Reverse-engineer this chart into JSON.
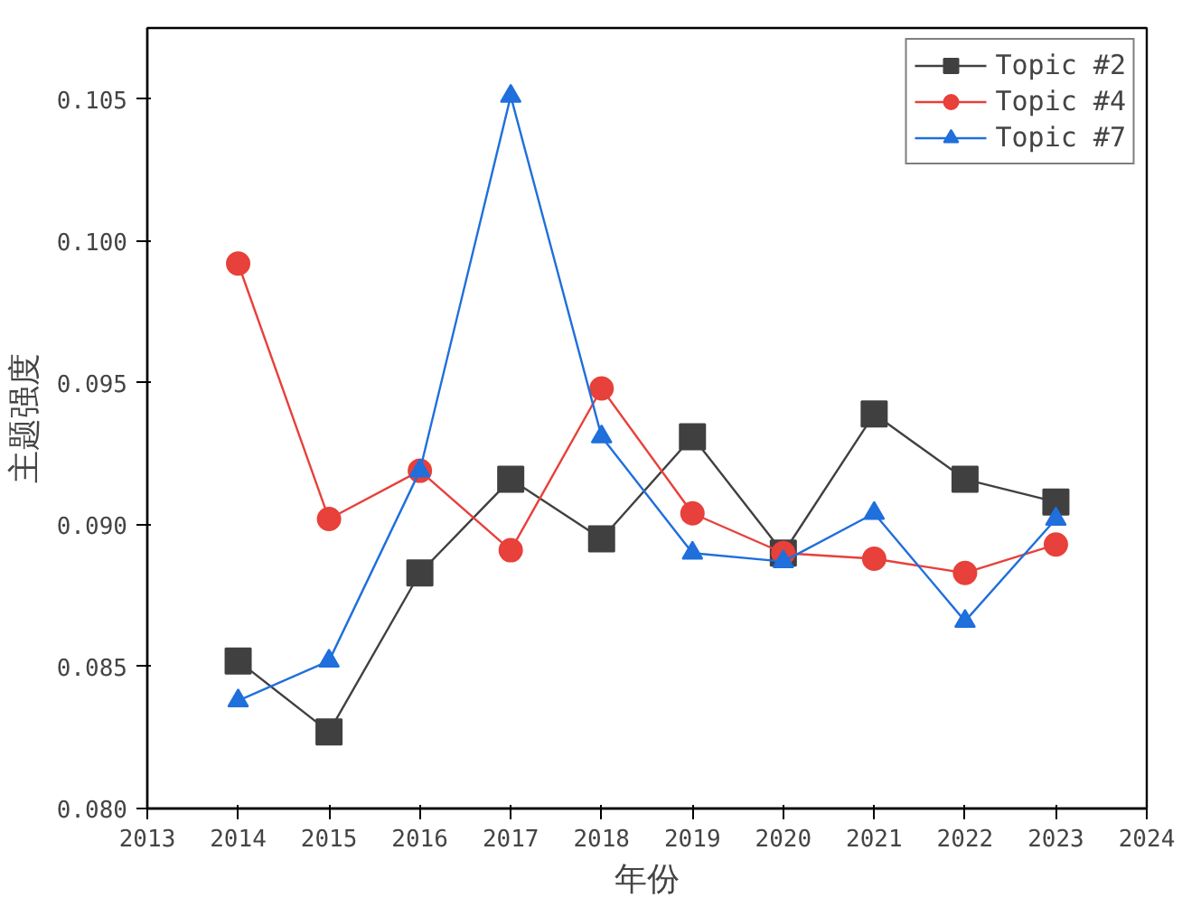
{
  "chart_data": {
    "type": "line",
    "xlabel": "年份",
    "ylabel": "主题强度",
    "x": [
      2014,
      2015,
      2016,
      2017,
      2018,
      2019,
      2020,
      2021,
      2022,
      2023
    ],
    "series": [
      {
        "name": "Topic #2",
        "color": "#404040",
        "marker": "square",
        "values": [
          0.0852,
          0.0827,
          0.0883,
          0.0916,
          0.0895,
          0.0931,
          0.089,
          0.0939,
          0.0916,
          0.0908
        ]
      },
      {
        "name": "Topic #4",
        "color": "#e8403a",
        "marker": "circle",
        "values": [
          0.0992,
          0.0902,
          0.0919,
          0.0891,
          0.0948,
          0.0904,
          0.089,
          0.0888,
          0.0883,
          0.0893
        ]
      },
      {
        "name": "Topic #7",
        "color": "#1f6fdc",
        "marker": "triangle",
        "values": [
          0.0838,
          0.0852,
          0.0919,
          0.1051,
          0.0931,
          0.089,
          0.0887,
          0.0904,
          0.0866,
          0.0902
        ]
      }
    ],
    "xlim": [
      2013,
      2024
    ],
    "xticks": [
      2013,
      2014,
      2015,
      2016,
      2017,
      2018,
      2019,
      2020,
      2021,
      2022,
      2023,
      2024
    ],
    "ylim": [
      0.08,
      0.1075
    ],
    "yticks": [
      {
        "value": 0.08,
        "label": "0.080"
      },
      {
        "value": 0.085,
        "label": "0.085"
      },
      {
        "value": 0.09,
        "label": "0.090"
      },
      {
        "value": 0.095,
        "label": "0.095"
      },
      {
        "value": 0.1,
        "label": "0.100"
      },
      {
        "value": 0.105,
        "label": "0.105"
      }
    ],
    "grid": false,
    "legend": "top right",
    "line_style": "solid"
  }
}
